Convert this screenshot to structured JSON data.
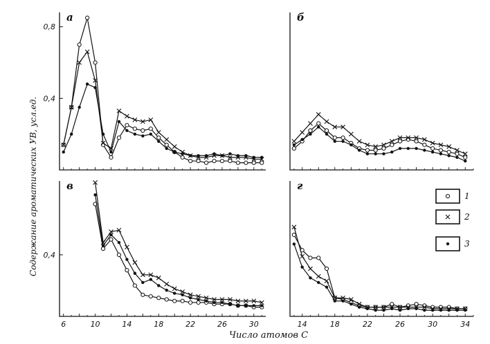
{
  "ylabel": "Содержание ароматических УВ, усл.ед.",
  "xlabel": "Число атомов С",
  "legend": [
    {
      "name": "1",
      "marker": "circle"
    },
    {
      "name": "2",
      "marker": "cross"
    },
    {
      "name": "3",
      "marker": "dot"
    }
  ],
  "chart_data": [
    {
      "type": "line",
      "panel_label": "а",
      "xlim": [
        5.5,
        31.5
      ],
      "ylim": [
        0,
        0.88
      ],
      "ytick_labels": [
        {
          "v": 0.4,
          "t": "0,4"
        },
        {
          "v": 0.8,
          "t": "0,8"
        }
      ],
      "series": [
        {
          "name": "1",
          "x": [
            6,
            7,
            8,
            9,
            10,
            11,
            12,
            13,
            14,
            15,
            16,
            17,
            18,
            19,
            20,
            21,
            22,
            23,
            24,
            25,
            26,
            27,
            28,
            29,
            30,
            31
          ],
          "values": [
            0.14,
            0.35,
            0.7,
            0.85,
            0.6,
            0.14,
            0.07,
            0.18,
            0.25,
            0.23,
            0.22,
            0.23,
            0.18,
            0.14,
            0.1,
            0.07,
            0.05,
            0.05,
            0.04,
            0.05,
            0.05,
            0.05,
            0.04,
            0.04,
            0.04,
            0.04
          ]
        },
        {
          "name": "2",
          "x": [
            6,
            7,
            8,
            9,
            10,
            11,
            12,
            13,
            14,
            15,
            16,
            17,
            18,
            19,
            20,
            21,
            22,
            23,
            24,
            25,
            26,
            27,
            28,
            29,
            30,
            31
          ],
          "values": [
            0.14,
            0.35,
            0.6,
            0.66,
            0.5,
            0.15,
            0.12,
            0.33,
            0.3,
            0.28,
            0.27,
            0.28,
            0.21,
            0.17,
            0.13,
            0.1,
            0.08,
            0.07,
            0.07,
            0.08,
            0.08,
            0.07,
            0.07,
            0.07,
            0.06,
            0.06
          ]
        },
        {
          "name": "3",
          "x": [
            6,
            7,
            8,
            9,
            10,
            11,
            12,
            13,
            14,
            15,
            16,
            17,
            18,
            19,
            20,
            21,
            22,
            23,
            24,
            25,
            26,
            27,
            28,
            29,
            30,
            31
          ],
          "values": [
            0.1,
            0.2,
            0.35,
            0.48,
            0.46,
            0.2,
            0.1,
            0.27,
            0.22,
            0.2,
            0.19,
            0.2,
            0.16,
            0.12,
            0.1,
            0.09,
            0.08,
            0.08,
            0.08,
            0.09,
            0.08,
            0.09,
            0.08,
            0.08,
            0.07,
            0.07
          ]
        }
      ]
    },
    {
      "type": "line",
      "panel_label": "б",
      "xlim": [
        12.5,
        35
      ],
      "ylim": [
        0,
        0.88
      ],
      "series": [
        {
          "name": "1",
          "x": [
            13,
            14,
            15,
            16,
            17,
            18,
            19,
            20,
            21,
            22,
            23,
            24,
            25,
            26,
            27,
            28,
            29,
            30,
            31,
            32,
            33,
            34
          ],
          "values": [
            0.12,
            0.16,
            0.22,
            0.26,
            0.22,
            0.18,
            0.18,
            0.15,
            0.12,
            0.11,
            0.11,
            0.12,
            0.14,
            0.16,
            0.17,
            0.16,
            0.14,
            0.12,
            0.11,
            0.1,
            0.09,
            0.07
          ]
        },
        {
          "name": "2",
          "x": [
            13,
            14,
            15,
            16,
            17,
            18,
            19,
            20,
            21,
            22,
            23,
            24,
            25,
            26,
            27,
            28,
            29,
            30,
            31,
            32,
            33,
            34
          ],
          "values": [
            0.16,
            0.21,
            0.26,
            0.31,
            0.27,
            0.24,
            0.24,
            0.2,
            0.16,
            0.14,
            0.13,
            0.14,
            0.16,
            0.18,
            0.18,
            0.18,
            0.17,
            0.15,
            0.14,
            0.13,
            0.11,
            0.09
          ]
        },
        {
          "name": "3",
          "x": [
            13,
            14,
            15,
            16,
            17,
            18,
            19,
            20,
            21,
            22,
            23,
            24,
            25,
            26,
            27,
            28,
            29,
            30,
            31,
            32,
            33,
            34
          ],
          "values": [
            0.14,
            0.17,
            0.2,
            0.24,
            0.2,
            0.16,
            0.16,
            0.14,
            0.11,
            0.09,
            0.09,
            0.09,
            0.1,
            0.12,
            0.12,
            0.12,
            0.11,
            0.1,
            0.09,
            0.08,
            0.07,
            0.05
          ]
        }
      ]
    },
    {
      "type": "line",
      "panel_label": "в",
      "xlim": [
        5.5,
        31.5
      ],
      "ylim": [
        0,
        0.88
      ],
      "xtick_labels": [
        6,
        10,
        14,
        18,
        22,
        26,
        30
      ],
      "ytick_labels": [
        {
          "v": 0.4,
          "t": "0,4"
        }
      ],
      "series": [
        {
          "name": "1",
          "x": [
            10,
            11,
            12,
            13,
            14,
            15,
            16,
            17,
            18,
            19,
            20,
            21,
            22,
            23,
            24,
            25,
            26,
            27,
            28,
            29,
            30,
            31
          ],
          "values": [
            0.73,
            0.44,
            0.5,
            0.4,
            0.3,
            0.2,
            0.14,
            0.13,
            0.12,
            0.11,
            0.1,
            0.1,
            0.09,
            0.09,
            0.09,
            0.08,
            0.08,
            0.08,
            0.07,
            0.07,
            0.06,
            0.06
          ]
        },
        {
          "name": "2",
          "x": [
            10,
            11,
            12,
            13,
            14,
            15,
            16,
            17,
            18,
            19,
            20,
            21,
            22,
            23,
            24,
            25,
            26,
            27,
            28,
            29,
            30,
            31
          ],
          "values": [
            0.87,
            0.48,
            0.55,
            0.56,
            0.45,
            0.35,
            0.27,
            0.27,
            0.25,
            0.21,
            0.18,
            0.16,
            0.14,
            0.13,
            0.12,
            0.11,
            0.11,
            0.11,
            0.1,
            0.1,
            0.1,
            0.09
          ]
        },
        {
          "name": "3",
          "x": [
            10,
            11,
            12,
            13,
            14,
            15,
            16,
            17,
            18,
            19,
            20,
            21,
            22,
            23,
            24,
            25,
            26,
            27,
            28,
            29,
            30,
            31
          ],
          "values": [
            0.79,
            0.46,
            0.53,
            0.48,
            0.37,
            0.28,
            0.22,
            0.24,
            0.2,
            0.17,
            0.15,
            0.14,
            0.12,
            0.11,
            0.1,
            0.09,
            0.09,
            0.08,
            0.07,
            0.07,
            0.07,
            0.07
          ]
        }
      ]
    },
    {
      "type": "line",
      "panel_label": "г",
      "xlim": [
        12.5,
        35
      ],
      "ylim": [
        0,
        0.88
      ],
      "xtick_labels": [
        14,
        18,
        22,
        26,
        30,
        34
      ],
      "series": [
        {
          "name": "1",
          "x": [
            13,
            14,
            15,
            16,
            17,
            18,
            19,
            20,
            21,
            22,
            23,
            24,
            25,
            26,
            27,
            28,
            29,
            30,
            31,
            32,
            33,
            34
          ],
          "values": [
            0.53,
            0.43,
            0.38,
            0.38,
            0.31,
            0.12,
            0.11,
            0.09,
            0.07,
            0.06,
            0.06,
            0.06,
            0.08,
            0.06,
            0.07,
            0.08,
            0.07,
            0.06,
            0.06,
            0.06,
            0.05,
            0.05
          ]
        },
        {
          "name": "2",
          "x": [
            13,
            14,
            15,
            16,
            17,
            18,
            19,
            20,
            21,
            22,
            23,
            24,
            25,
            26,
            27,
            28,
            29,
            30,
            31,
            32,
            33,
            34
          ],
          "values": [
            0.58,
            0.39,
            0.31,
            0.26,
            0.23,
            0.12,
            0.12,
            0.11,
            0.08,
            0.06,
            0.06,
            0.06,
            0.06,
            0.06,
            0.06,
            0.06,
            0.06,
            0.05,
            0.05,
            0.05,
            0.05,
            0.05
          ]
        },
        {
          "name": "3",
          "x": [
            13,
            14,
            15,
            16,
            17,
            18,
            19,
            20,
            21,
            22,
            23,
            24,
            25,
            26,
            27,
            28,
            29,
            30,
            31,
            32,
            33,
            34
          ],
          "values": [
            0.47,
            0.32,
            0.25,
            0.22,
            0.19,
            0.1,
            0.1,
            0.08,
            0.06,
            0.05,
            0.04,
            0.04,
            0.05,
            0.04,
            0.05,
            0.05,
            0.04,
            0.04,
            0.04,
            0.04,
            0.04,
            0.04
          ]
        }
      ]
    }
  ]
}
